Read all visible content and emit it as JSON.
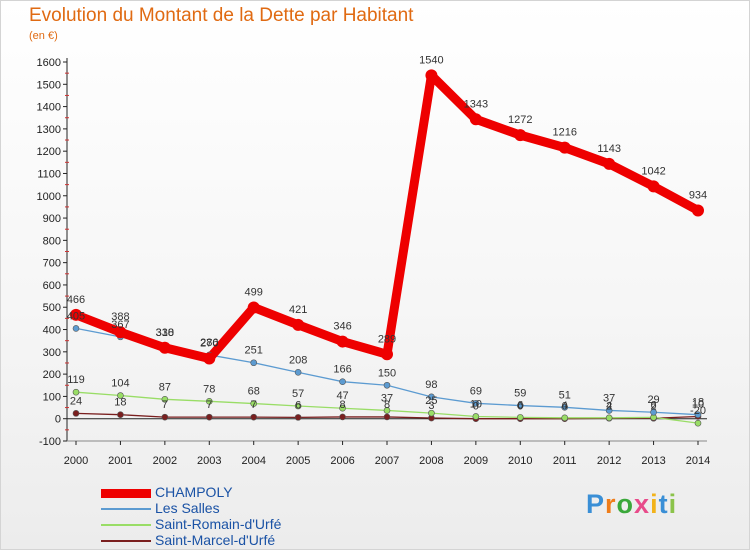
{
  "title": "Evolution du Montant de la Dette par Habitant",
  "subtitle": "(en €)",
  "logo": {
    "letters": [
      "P",
      "r",
      "o",
      "x",
      "i",
      "t",
      "i"
    ],
    "colors": [
      "#3a8fd6",
      "#ef7d1a",
      "#3aa83a",
      "#e84b8a",
      "#f2b31a",
      "#3a8fd6",
      "#8bc34a"
    ]
  },
  "chart_data": {
    "type": "line",
    "x": [
      2000,
      2001,
      2002,
      2003,
      2004,
      2005,
      2006,
      2007,
      2008,
      2009,
      2010,
      2011,
      2012,
      2013,
      2014
    ],
    "ylim": [
      -100,
      1600
    ],
    "yticks": [
      -100,
      0,
      100,
      200,
      300,
      400,
      500,
      600,
      700,
      800,
      900,
      1000,
      1100,
      1200,
      1300,
      1400,
      1500,
      1600
    ],
    "grid": false,
    "legend_position": "bottom-left",
    "series": [
      {
        "name": "CHAMPOLY",
        "color": "#ee0000",
        "values": [
          466,
          388,
          318,
          270,
          499,
          421,
          346,
          289,
          1540,
          1343,
          1272,
          1216,
          1143,
          1042,
          934
        ]
      },
      {
        "name": "Les Salles",
        "color": "#5c9bd1",
        "values": [
          405,
          367,
          330,
          286,
          251,
          208,
          166,
          150,
          98,
          69,
          59,
          51,
          37,
          29,
          18
        ]
      },
      {
        "name": "Saint-Romain-d'Urfé",
        "color": "#99dd66",
        "values": [
          119,
          104,
          87,
          78,
          68,
          57,
          47,
          37,
          25,
          10,
          6,
          4,
          4,
          6,
          -20
        ]
      },
      {
        "name": "Saint-Marcel-d'Urfé",
        "color": "#7a1f1f",
        "values": [
          24,
          18,
          7,
          7,
          7,
          6,
          8,
          8,
          3,
          0,
          0,
          0,
          2,
          2,
          10
        ]
      }
    ]
  }
}
